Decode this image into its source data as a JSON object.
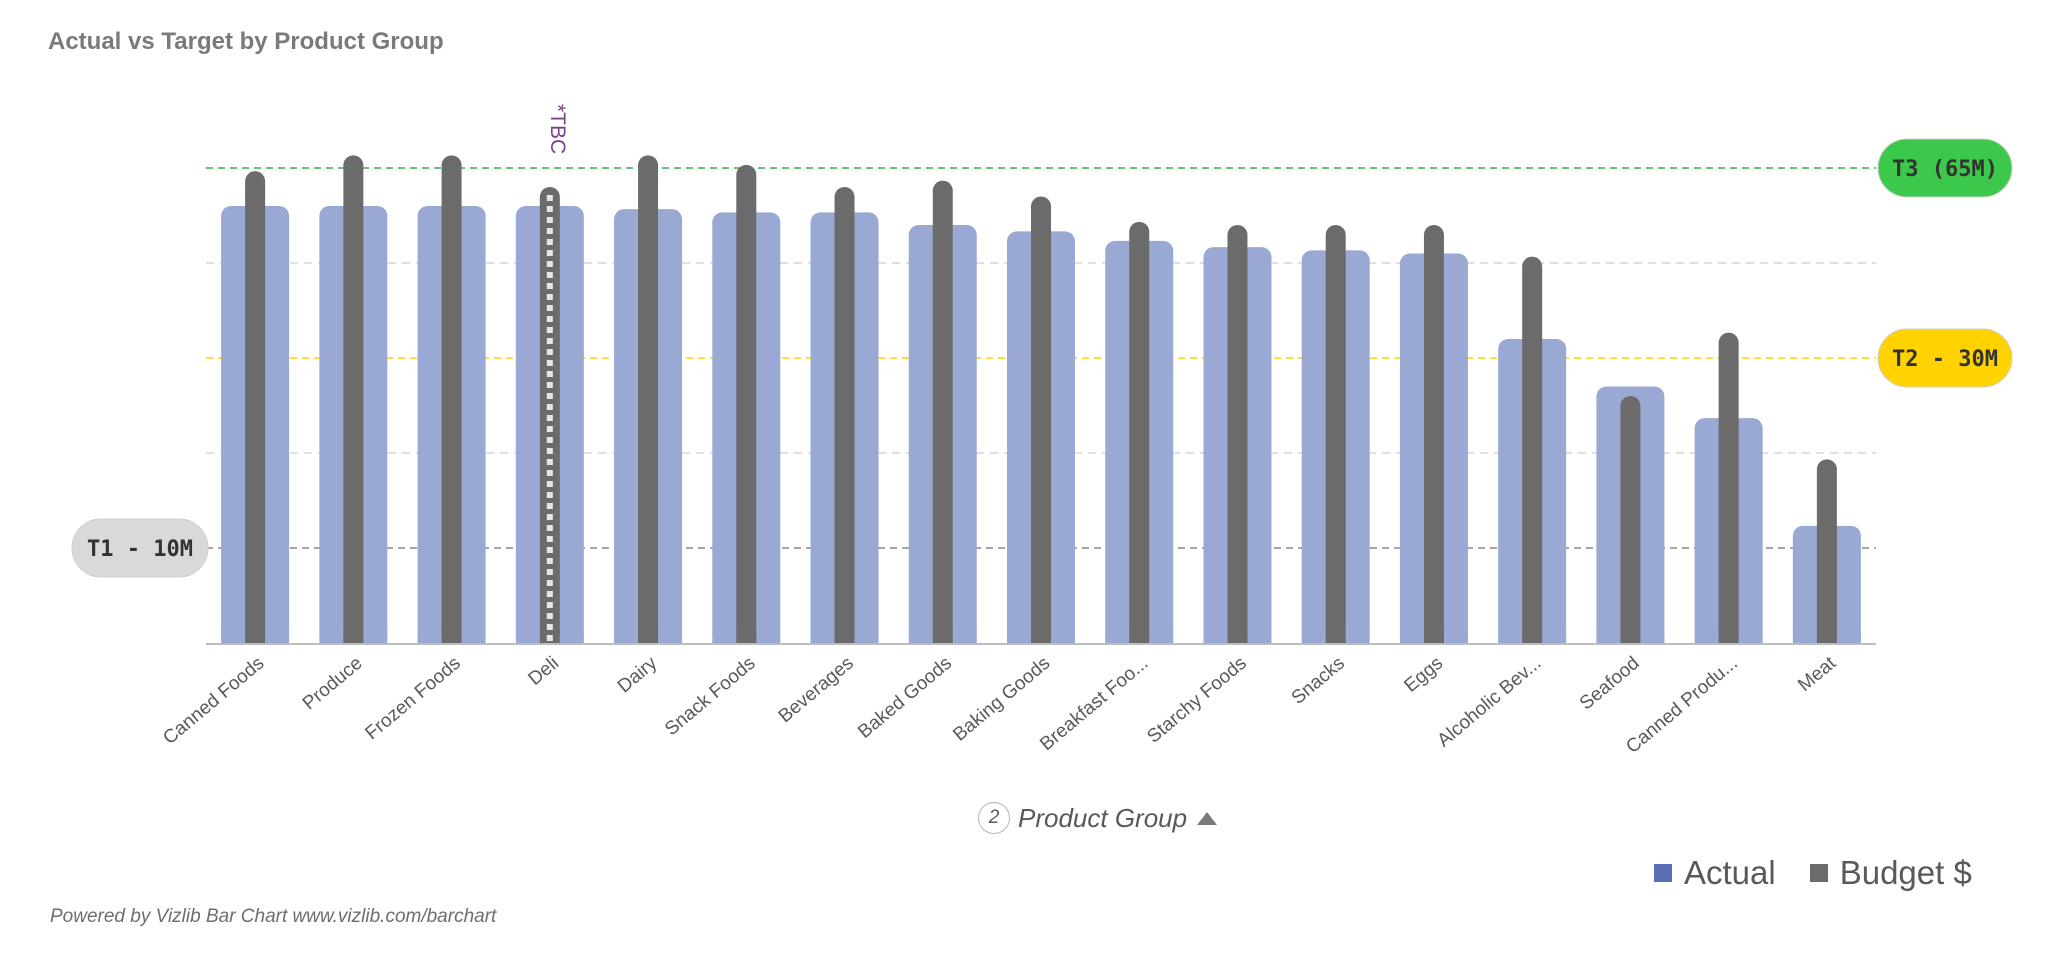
{
  "page": {
    "title": "Actual vs Target by Product Group",
    "footer": "Powered by Vizlib Bar Chart www.vizlib.com/barchart"
  },
  "chart_data": {
    "type": "bar",
    "title": "Actual vs Target by Product Group",
    "xlabel": "Product Group",
    "xlabel_step": "2",
    "ylabel": "",
    "ylim": [
      0,
      75
    ],
    "grid": "horizontal dashed",
    "legend_position": "bottom-right",
    "categories": [
      "Canned Foods",
      "Produce",
      "Frozen Foods",
      "Deli",
      "Dairy",
      "Snack Foods",
      "Beverages",
      "Baked Goods",
      "Baking Goods",
      "Breakfast Foo...",
      "Starchy Foods",
      "Snacks",
      "Eggs",
      "Alcoholic Bev...",
      "Seafood",
      "Canned Produ...",
      "Meat"
    ],
    "series": [
      {
        "name": "Actual",
        "color": "#9aa9d3",
        "values": [
          69.0,
          69.0,
          69.0,
          69.0,
          68.5,
          68.0,
          68.0,
          66.0,
          65.0,
          63.5,
          62.5,
          62.0,
          61.5,
          48.0,
          40.5,
          35.5,
          18.5
        ]
      },
      {
        "name": "Budget $",
        "color": "#6b6b6b",
        "values": [
          74.5,
          77.0,
          77.0,
          72.0,
          77.0,
          75.5,
          72.0,
          73.0,
          70.5,
          66.5,
          66.0,
          66.0,
          66.0,
          61.0,
          39.0,
          49.0,
          29.0
        ]
      }
    ],
    "dashed_budget_category": "Deli",
    "annotations": [
      {
        "category": "Deli",
        "text": "*TBC",
        "color": "#7b3f8c"
      }
    ],
    "reference_lines": [
      {
        "label": "T3 (65M)",
        "value": 75,
        "line_color": "#3cb043",
        "badge_color": "#3cc84a",
        "text_color": "#333333",
        "side": "right"
      },
      {
        "label": "T2 - 30M",
        "value": 45,
        "line_color": "#ffd000",
        "badge_color": "#ffd200",
        "text_color": "#333333",
        "side": "right"
      },
      {
        "label": "T1 - 10M",
        "value": 15,
        "line_color": "#888888",
        "badge_color": "#d9d9d9",
        "text_color": "#333333",
        "side": "left"
      }
    ],
    "gridlines": [
      30,
      60
    ]
  },
  "legend": [
    {
      "label": "Actual",
      "color": "#5b6fb5"
    },
    {
      "label": "Budget $",
      "color": "#6b6b6b"
    }
  ]
}
